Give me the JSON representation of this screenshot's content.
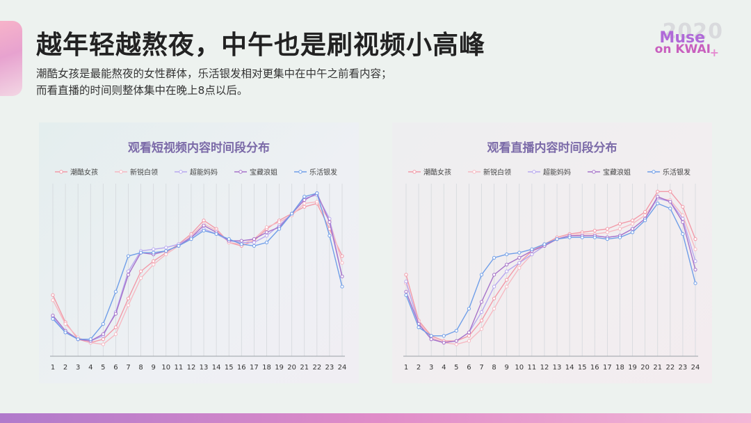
{
  "header": {
    "title": "越年轻越熬夜，中午也是刷视频小高峰",
    "subtitle_line1": "潮酷女孩是最能熬夜的女性群体，乐活银发相对更集中在中午之前看内容；",
    "subtitle_line2": "而看直播的时间则整体集中在晚上8点以后。"
  },
  "logo": {
    "year": "2020",
    "line1": "Muse",
    "line2": "on KWAI",
    "plus": "+"
  },
  "chart_data": [
    {
      "type": "line",
      "title": "观看短视频内容时间段分布",
      "categories": [
        "1",
        "2",
        "3",
        "4",
        "5",
        "6",
        "7",
        "8",
        "9",
        "10",
        "11",
        "12",
        "13",
        "14",
        "15",
        "16",
        "17",
        "18",
        "19",
        "20",
        "21",
        "22",
        "23",
        "24"
      ],
      "ylim": [
        0,
        100
      ],
      "grid": "vertical",
      "legend": "top",
      "series": [
        {
          "name": "潮酷女孩",
          "color": "#f29aa8",
          "values": [
            36,
            20,
            10,
            8,
            10,
            17,
            34,
            50,
            56,
            61,
            66,
            72,
            80,
            75,
            67,
            65,
            68,
            75,
            80,
            84,
            88,
            90,
            75,
            59
          ]
        },
        {
          "name": "新锐白领",
          "color": "#f6b9c2",
          "values": [
            33,
            19,
            11,
            8,
            7,
            13,
            30,
            46,
            54,
            60,
            65,
            71,
            78,
            74,
            67,
            66,
            69,
            76,
            79,
            83,
            90,
            91,
            80,
            55
          ]
        },
        {
          "name": "超能妈妈",
          "color": "#b7a8ef",
          "values": [
            23,
            14,
            10,
            9,
            12,
            26,
            50,
            62,
            63,
            64,
            66,
            70,
            75,
            72,
            68,
            67,
            67,
            71,
            77,
            84,
            93,
            95,
            81,
            47
          ]
        },
        {
          "name": "宝藏浪姐",
          "color": "#a673c9",
          "values": [
            24,
            15,
            10,
            9,
            13,
            25,
            48,
            61,
            60,
            62,
            65,
            70,
            77,
            73,
            68,
            68,
            69,
            73,
            76,
            84,
            92,
            96,
            79,
            47
          ]
        },
        {
          "name": "乐活银发",
          "color": "#6f9ee8",
          "values": [
            22,
            14,
            10,
            10,
            19,
            38,
            59,
            61,
            61,
            62,
            65,
            69,
            74,
            72,
            69,
            66,
            65,
            67,
            75,
            84,
            94,
            96,
            71,
            41
          ]
        }
      ]
    },
    {
      "type": "line",
      "title": "观看直播内容时间段分布",
      "categories": [
        "1",
        "2",
        "3",
        "4",
        "5",
        "6",
        "7",
        "8",
        "9",
        "10",
        "11",
        "12",
        "13",
        "14",
        "15",
        "16",
        "17",
        "18",
        "19",
        "20",
        "21",
        "22",
        "23",
        "24"
      ],
      "ylim": [
        0,
        100
      ],
      "grid": "vertical",
      "legend": "top",
      "series": [
        {
          "name": "潮酷女孩",
          "color": "#f29aa8",
          "values": [
            48,
            21,
            12,
            9,
            9,
            12,
            21,
            34,
            45,
            55,
            62,
            66,
            70,
            72,
            73,
            74,
            75,
            78,
            80,
            85,
            97,
            97,
            88,
            69
          ]
        },
        {
          "name": "新锐白领",
          "color": "#f6b9c2",
          "values": [
            43,
            20,
            11,
            8,
            7,
            9,
            16,
            28,
            41,
            52,
            60,
            65,
            69,
            71,
            72,
            72,
            73,
            75,
            78,
            83,
            93,
            92,
            83,
            63
          ]
        },
        {
          "name": "超能妈妈",
          "color": "#b7a8ef",
          "values": [
            44,
            19,
            10,
            8,
            9,
            14,
            26,
            41,
            50,
            55,
            60,
            65,
            69,
            71,
            71,
            71,
            70,
            71,
            75,
            81,
            93,
            91,
            81,
            56
          ]
        },
        {
          "name": "宝藏浪姐",
          "color": "#a673c9",
          "values": [
            38,
            19,
            10,
            8,
            9,
            14,
            32,
            48,
            54,
            58,
            62,
            65,
            69,
            71,
            71,
            71,
            70,
            71,
            75,
            81,
            94,
            91,
            79,
            51
          ]
        },
        {
          "name": "乐活银发",
          "color": "#6f9ee8",
          "values": [
            36,
            17,
            12,
            12,
            15,
            28,
            48,
            58,
            60,
            61,
            63,
            66,
            69,
            70,
            70,
            70,
            69,
            70,
            73,
            80,
            90,
            87,
            72,
            43
          ]
        }
      ]
    }
  ]
}
